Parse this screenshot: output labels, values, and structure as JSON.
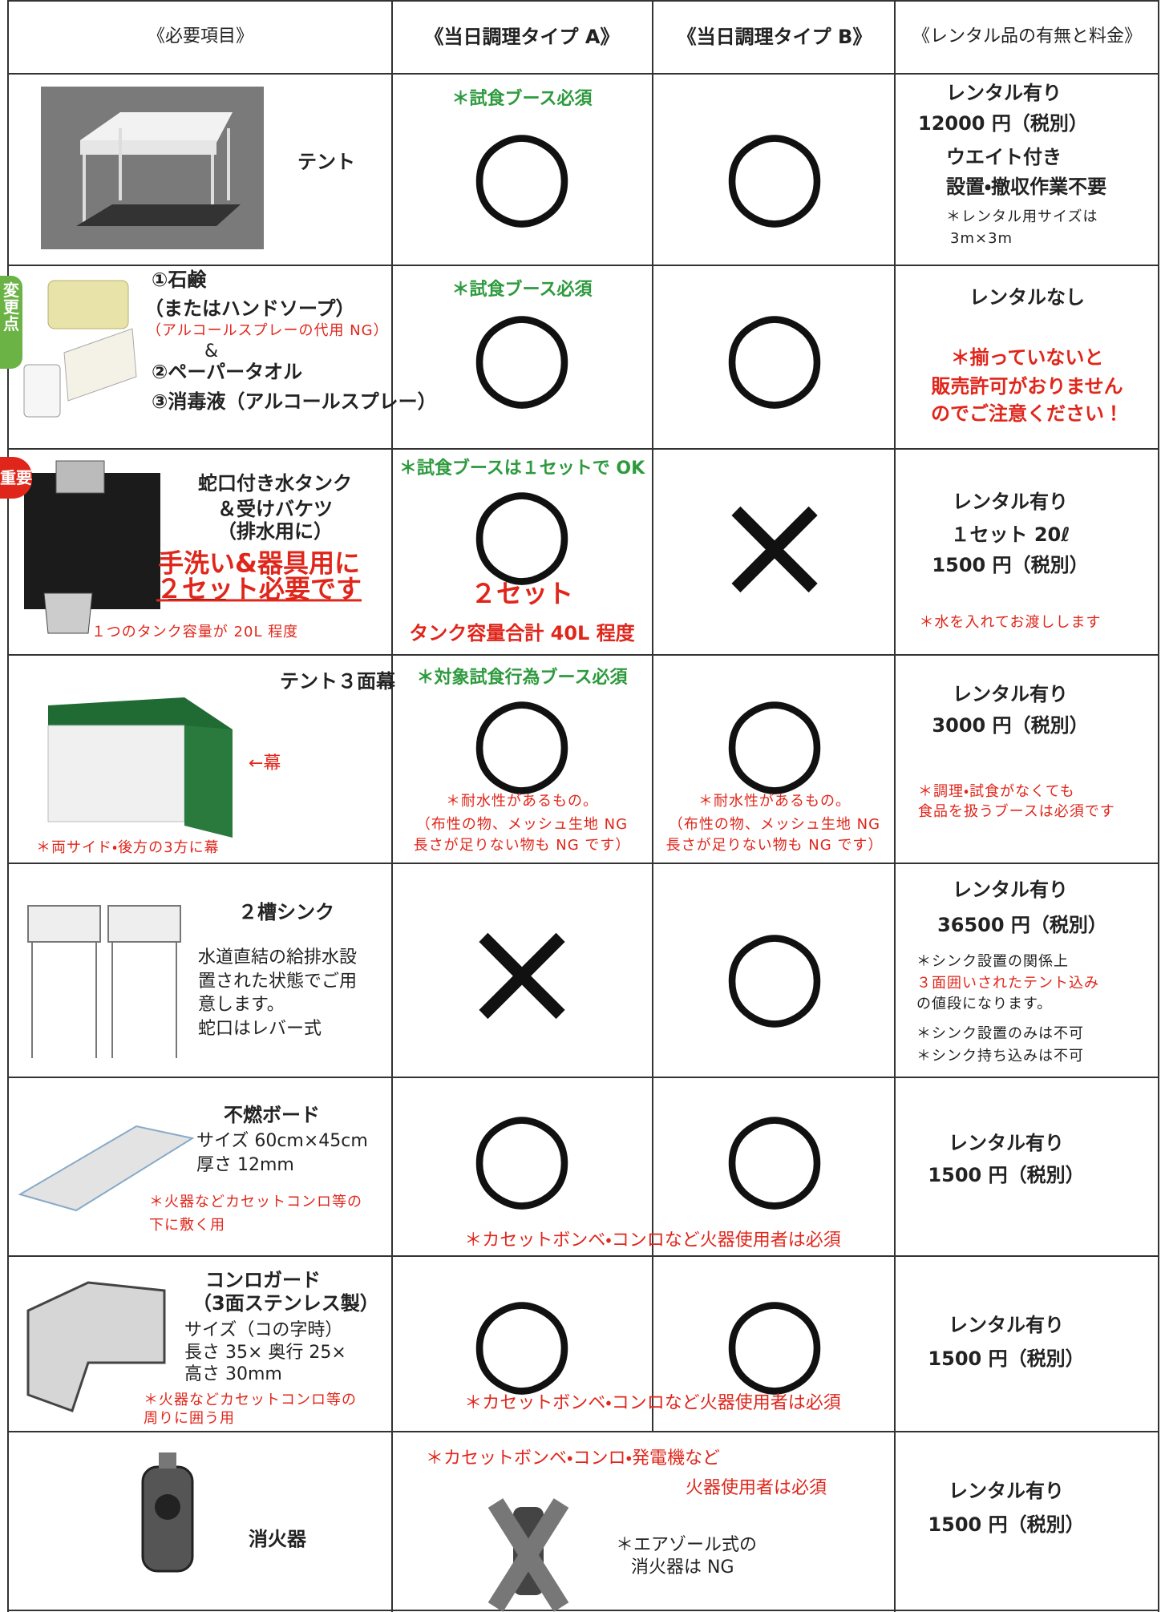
{
  "header": [
    "《必要項目》",
    "《当日調理タイプ A》",
    "《当日調理タイプ B》",
    "《レンタル品の有無と料金》"
  ],
  "badges": [
    "変更点",
    "重要"
  ],
  "rows": [
    {
      "item": [
        "テント"
      ],
      "a": [
        "＊試食ブース必須",
        "○"
      ],
      "b": [
        "○"
      ],
      "rental": [
        "レンタル有り",
        "12000 円（税別）",
        "ウエイト付き",
        "設置・撤収作業不要",
        "＊レンタル用サイズは",
        "3m×3m"
      ]
    },
    {
      "item": [
        "①石鹸",
        "（またはハンドソープ）",
        "（アルコールスプレーの代用 NG）",
        "&",
        "②ペーパータオル",
        "③消毒液（アルコールスプレー）"
      ],
      "a": [
        "＊試食ブース必須",
        "○"
      ],
      "b": [
        "○"
      ],
      "rental": [
        "レンタルなし",
        "＊揃っていないと",
        "販売許可がおりません",
        "のでご注意ください！"
      ]
    },
    {
      "item": [
        "蛇口付き水タンク",
        "＆受けバケツ",
        "（排水用に）",
        "手洗い&器具用に",
        "２セット必要です",
        "１つのタンク容量が 20L 程度"
      ],
      "a": [
        "＊試食ブースは１セットで OK",
        "○",
        "２セット",
        "タンク容量合計 40L 程度"
      ],
      "b": [
        "×"
      ],
      "rental": [
        "レンタル有り",
        "１セット 20ℓ",
        "1500 円（税別）",
        "＊水を入れてお渡しします"
      ]
    },
    {
      "item": [
        "テント３面幕",
        "←幕",
        "＊両サイド・後方の3方に幕"
      ],
      "a": [
        "＊対象試食行為ブース必須",
        "○",
        "＊耐水性があるもの。",
        "（布性の物、メッシュ生地 NG",
        "長さが足りない物も NG です）"
      ],
      "b": [
        "○",
        "＊耐水性があるもの。",
        "（布性の物、メッシュ生地 NG",
        "長さが足りない物も NG です）"
      ],
      "rental": [
        "レンタル有り",
        "3000 円（税別）",
        "＊調理・試食がなくても",
        "食品を扱うブースは必須です"
      ]
    },
    {
      "item": [
        "２槽シンク",
        "水道直結の給排水設",
        "置された状態でご用",
        "意します。",
        "蛇口はレバー式"
      ],
      "a": [
        "×"
      ],
      "b": [
        "○"
      ],
      "rental": [
        "レンタル有り",
        "36500 円（税別）",
        "＊シンク設置の関係上",
        "３面囲いされたテント込み",
        "の値段になります。",
        "＊シンク設置のみは不可",
        "＊シンク持ち込みは不可"
      ]
    },
    {
      "item": [
        "不燃ボード",
        "サイズ 60cm×45cm",
        "厚さ 12mm",
        "＊火器などカセットコンロ等の",
        "下に敷く用"
      ],
      "a": [
        "○",
        "＊カセットボンベ・コンロなど火器使用者は必須"
      ],
      "b": [
        "○"
      ],
      "rental": [
        "レンタル有り",
        "1500 円（税別）"
      ]
    },
    {
      "item": [
        "コンロガード",
        "（3面ステンレス製）",
        "サイズ（コの字時）",
        "長さ 35× 奥行 25×",
        "高さ 30mm",
        "＊火器などカセットコンロ等の",
        "周りに囲う用"
      ],
      "a": [
        "○",
        "＊カセットボンベ・コンロなど火器使用者は必須"
      ],
      "b": [
        "○"
      ],
      "rental": [
        "レンタル有り",
        "1500 円（税別）"
      ]
    },
    {
      "item": [
        "消火器"
      ],
      "a": [
        "＊カセットボンベ・コンロ・発電機など",
        "火器使用者は必須",
        "＊エアゾール式の",
        "消火器は NG"
      ],
      "b": [],
      "rental": [
        "レンタル有り",
        "1500 円（税別）"
      ]
    }
  ]
}
